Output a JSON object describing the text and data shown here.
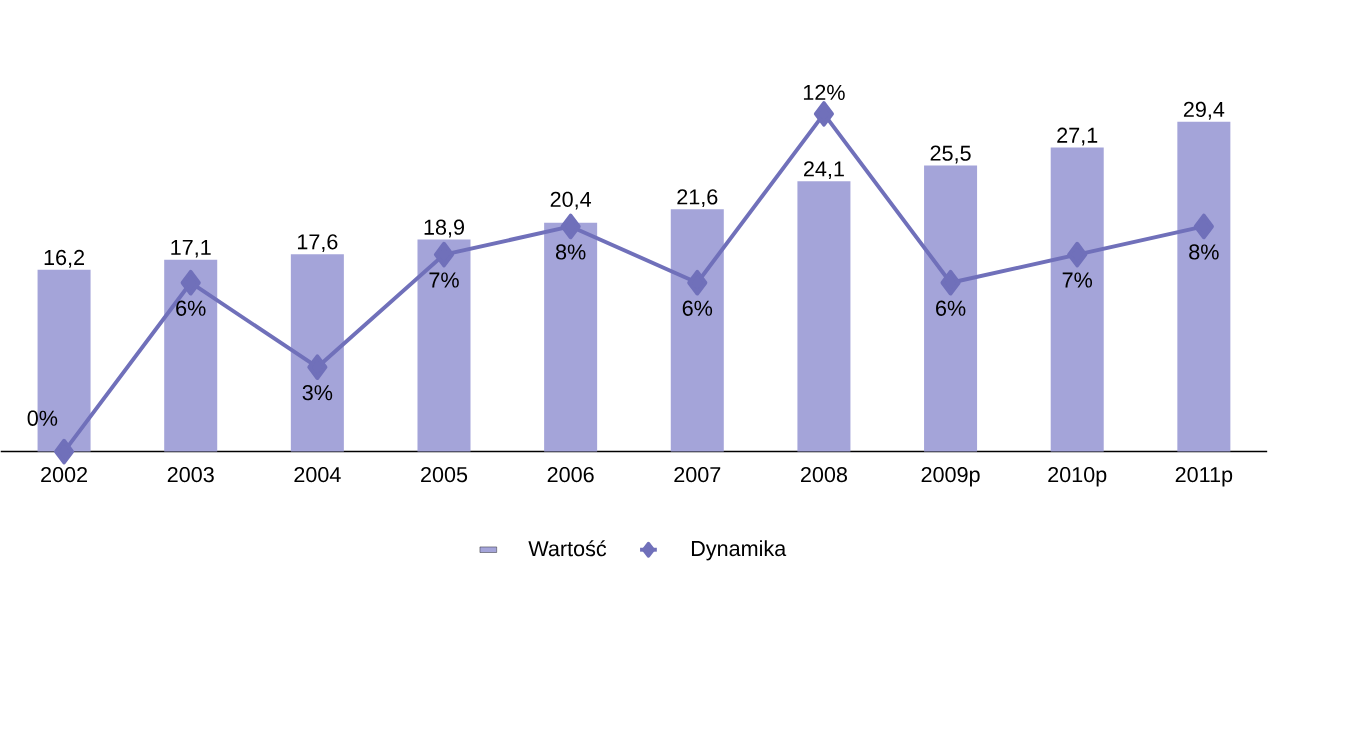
{
  "chart_data": {
    "type": "bar",
    "categories": [
      "2002",
      "2003",
      "2004",
      "2005",
      "2006",
      "2007",
      "2008",
      "2009p",
      "2010p",
      "2011p"
    ],
    "series": [
      {
        "name": "Wartość",
        "color": "#a4a4d9",
        "values": [
          16.2,
          17.1,
          17.6,
          18.9,
          20.4,
          21.6,
          24.1,
          25.5,
          27.1,
          29.4
        ],
        "value_labels": [
          "16,2",
          "17,1",
          "17,6",
          "18,9",
          "20,4",
          "21,6",
          "24,1",
          "25,5",
          "27,1",
          "29,4"
        ]
      },
      {
        "name": "Dynamika",
        "type": "line",
        "axis": "y2",
        "color": "#7070ba",
        "values": [
          0,
          6,
          3,
          7,
          8,
          6,
          12,
          6,
          7,
          8
        ],
        "value_labels": [
          "0%",
          "6%",
          "3%",
          "7%",
          "8%",
          "6%",
          "12%",
          "6%",
          "7%",
          "8%"
        ]
      }
    ],
    "marker": "diamond",
    "legend": "bottom",
    "tick_labels": "x"
  }
}
